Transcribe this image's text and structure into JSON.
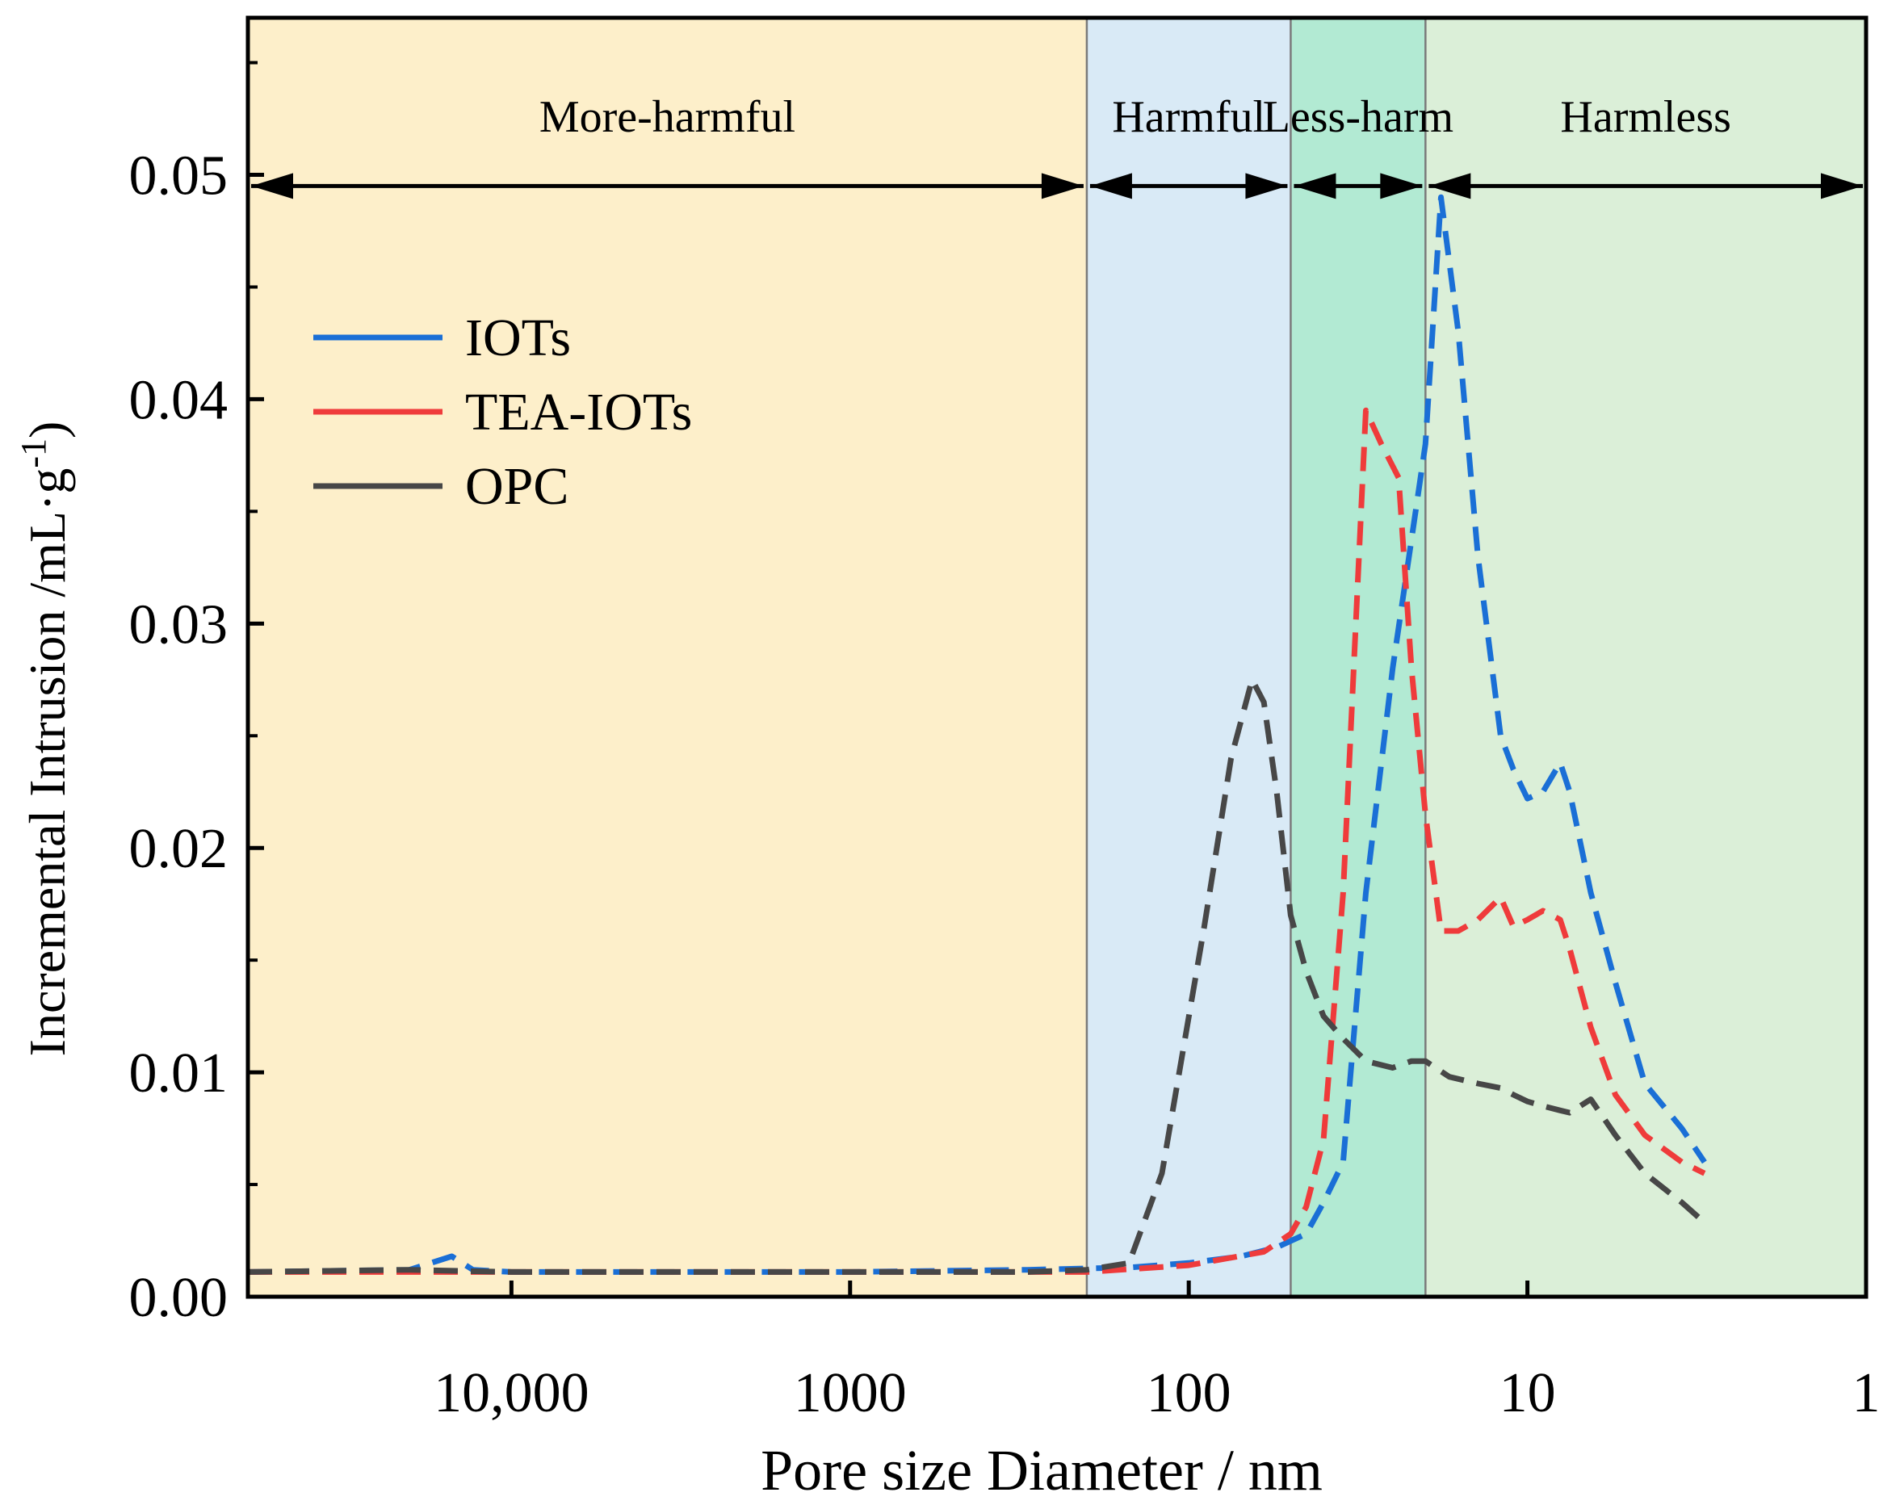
{
  "chart_data": {
    "type": "line",
    "line_style": "dashed",
    "x_scale": "log",
    "x_reversed": true,
    "xlim": [
      60000,
      1
    ],
    "ylim": [
      0.0,
      0.057
    ],
    "xlabel": "Pore size Diameter / nm",
    "ylabel": "Incremental Intrusion /mL·g⁻¹)",
    "ylabel_main": "Incremental Intrusion /mL·g",
    "ylabel_sup": "-1",
    "ylabel_close": ")",
    "x_ticks": [
      {
        "value": 10000,
        "label": "10,000"
      },
      {
        "value": 1000,
        "label": "1000"
      },
      {
        "value": 100,
        "label": "100"
      },
      {
        "value": 10,
        "label": "10"
      },
      {
        "value": 1,
        "label": "1"
      }
    ],
    "y_ticks": [
      {
        "value": 0.0,
        "label": "0.00"
      },
      {
        "value": 0.01,
        "label": "0.01"
      },
      {
        "value": 0.02,
        "label": "0.02"
      },
      {
        "value": 0.03,
        "label": "0.03"
      },
      {
        "value": 0.04,
        "label": "0.04"
      },
      {
        "value": 0.05,
        "label": "0.05"
      }
    ],
    "y_minor_ticks": [
      0.005,
      0.015,
      0.025,
      0.035,
      0.045,
      0.055
    ],
    "regions": [
      {
        "label": "More-harmful",
        "from": 60000,
        "to": 200,
        "color": "#fdefca"
      },
      {
        "label": "Harmful",
        "from": 200,
        "to": 50,
        "color": "#d9eaf6"
      },
      {
        "label": "Less-harm",
        "from": 50,
        "to": 20,
        "color": "#b2ead3"
      },
      {
        "label": "Harmless",
        "from": 20,
        "to": 1,
        "color": "#dbefd8"
      }
    ],
    "region_arrow_y": 0.0495,
    "series": [
      {
        "name": "IOTs",
        "color": "#1a6fd6",
        "x": [
          60000,
          20000,
          15000,
          13000,
          10000,
          3000,
          1000,
          300,
          150,
          100,
          70,
          55,
          45,
          40,
          35,
          30,
          25,
          20,
          18,
          16,
          14,
          12,
          11,
          10,
          9,
          8,
          7.5,
          6.5,
          5.5,
          4.5,
          3.5,
          3
        ],
        "values": [
          0.0011,
          0.0012,
          0.0018,
          0.0012,
          0.0011,
          0.0011,
          0.0011,
          0.0012,
          0.0013,
          0.0015,
          0.0018,
          0.0022,
          0.0028,
          0.0042,
          0.006,
          0.018,
          0.028,
          0.038,
          0.049,
          0.043,
          0.033,
          0.025,
          0.0235,
          0.0222,
          0.0225,
          0.0238,
          0.0225,
          0.018,
          0.014,
          0.0095,
          0.0075,
          0.006
        ]
      },
      {
        "name": "TEA-IOTs",
        "color": "#ef3b3b",
        "x": [
          60000,
          20000,
          10000,
          3000,
          1000,
          300,
          200,
          100,
          60,
          50,
          45,
          40,
          35,
          30,
          27,
          24,
          22,
          20,
          18,
          16,
          14,
          12,
          11,
          10,
          9,
          8,
          7.5,
          6.5,
          5.5,
          4.5,
          3.5,
          3
        ],
        "values": [
          0.0011,
          0.0011,
          0.0011,
          0.0011,
          0.0011,
          0.0011,
          0.0011,
          0.0014,
          0.002,
          0.0028,
          0.004,
          0.007,
          0.018,
          0.0395,
          0.038,
          0.0365,
          0.028,
          0.0215,
          0.0163,
          0.0163,
          0.0168,
          0.0178,
          0.0165,
          0.0168,
          0.0172,
          0.0168,
          0.0155,
          0.012,
          0.009,
          0.0072,
          0.006,
          0.0055
        ]
      },
      {
        "name": "OPC",
        "color": "#474747",
        "x": [
          60000,
          20000,
          10000,
          3000,
          1000,
          300,
          200,
          150,
          120,
          90,
          75,
          65,
          60,
          55,
          50,
          45,
          40,
          35,
          30,
          25,
          22,
          20,
          17,
          14,
          12,
          11,
          10,
          9,
          8,
          7.5,
          6.5,
          5.5,
          4.5,
          3.5,
          3
        ],
        "values": [
          0.0011,
          0.0012,
          0.0011,
          0.0011,
          0.0011,
          0.0011,
          0.0012,
          0.0015,
          0.0055,
          0.0165,
          0.024,
          0.0275,
          0.0265,
          0.0225,
          0.017,
          0.0145,
          0.0125,
          0.0115,
          0.0105,
          0.0102,
          0.0105,
          0.0105,
          0.0098,
          0.0095,
          0.0093,
          0.009,
          0.0087,
          0.0085,
          0.0083,
          0.0082,
          0.0088,
          0.0072,
          0.0055,
          0.0042,
          0.0033
        ]
      }
    ]
  }
}
